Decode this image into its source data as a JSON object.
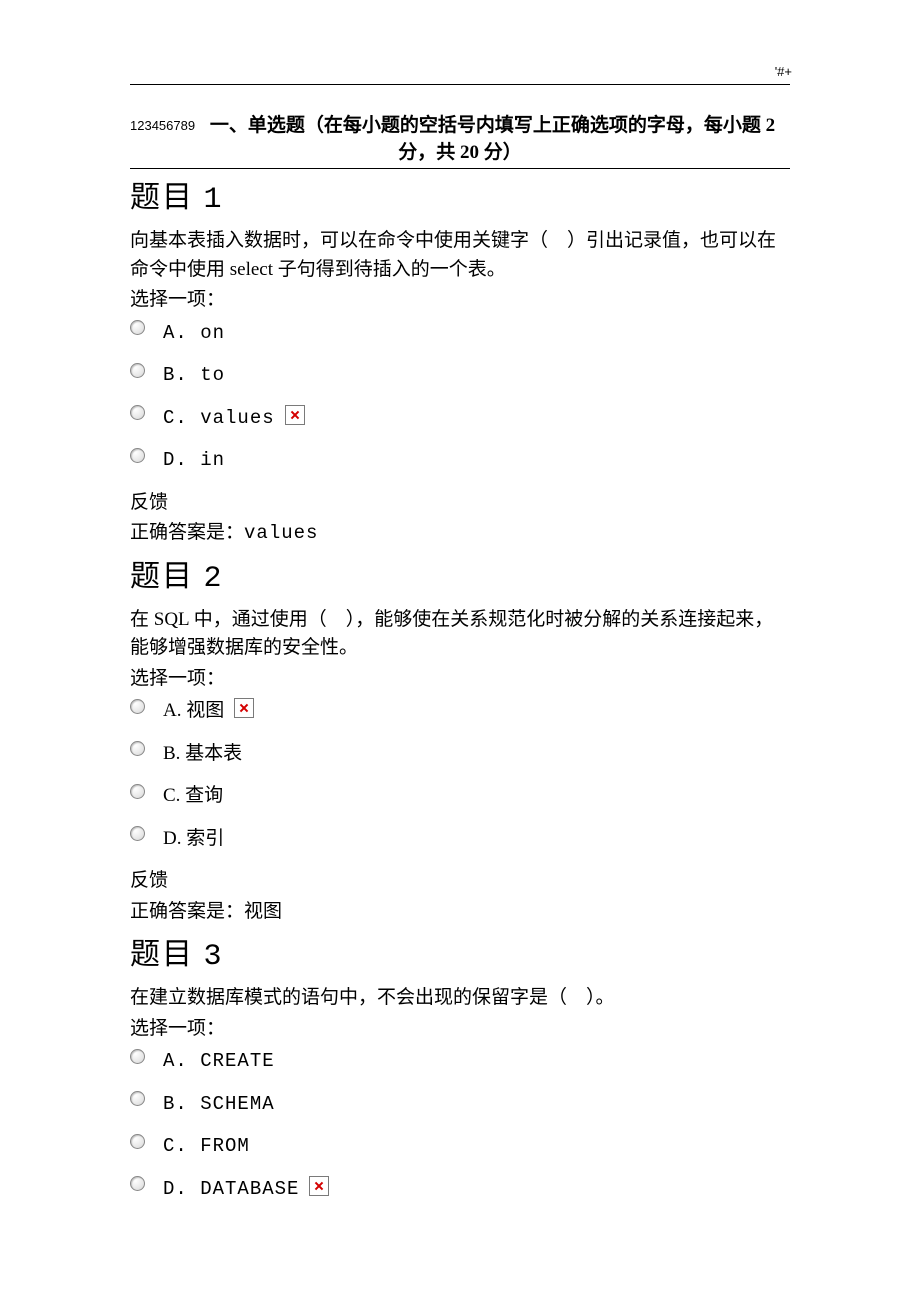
{
  "header_mark": "'#+",
  "section_header": {
    "leading": "123456789",
    "text": "一、单选题（在每小题的空括号内填写上正确选项的字母，每小题 2 分，共 20 分）"
  },
  "select_one_label": "选择一项：",
  "feedback_label": "反馈",
  "correct_prefix": "正确答案是：",
  "questions": [
    {
      "title_prefix": "题目",
      "number": "1",
      "body": "向基本表插入数据时，可以在命令中使用关键字（　）引出记录值，也可以在命令中使用 select 子句得到待插入的一个表。",
      "options": [
        {
          "letter": "A",
          "text": "on",
          "mono": true,
          "broken": false
        },
        {
          "letter": "B",
          "text": "to",
          "mono": true,
          "broken": false
        },
        {
          "letter": "C",
          "text": "values",
          "mono": true,
          "broken": true
        },
        {
          "letter": "D",
          "text": "in",
          "mono": true,
          "broken": false
        }
      ],
      "answer": "values",
      "answer_mono": true
    },
    {
      "title_prefix": "题目",
      "number": "2",
      "body": "在 SQL 中，通过使用（　），能够使在关系规范化时被分解的关系连接起来，能够增强数据库的安全性。",
      "options": [
        {
          "letter": "A",
          "text": "视图",
          "mono": false,
          "broken": true
        },
        {
          "letter": "B",
          "text": "基本表",
          "mono": false,
          "broken": false
        },
        {
          "letter": "C",
          "text": "查询",
          "mono": false,
          "broken": false
        },
        {
          "letter": "D",
          "text": "索引",
          "mono": false,
          "broken": false
        }
      ],
      "answer": "视图",
      "answer_mono": false
    },
    {
      "title_prefix": "题目",
      "number": "3",
      "body": "在建立数据库模式的语句中，不会出现的保留字是（　）。",
      "options": [
        {
          "letter": "A",
          "text": "CREATE",
          "mono": true,
          "broken": false
        },
        {
          "letter": "B",
          "text": "SCHEMA",
          "mono": true,
          "broken": false
        },
        {
          "letter": "C",
          "text": "FROM",
          "mono": true,
          "broken": false
        },
        {
          "letter": "D",
          "text": "DATABASE",
          "mono": true,
          "broken": true
        }
      ],
      "answer": null,
      "answer_mono": false
    }
  ]
}
